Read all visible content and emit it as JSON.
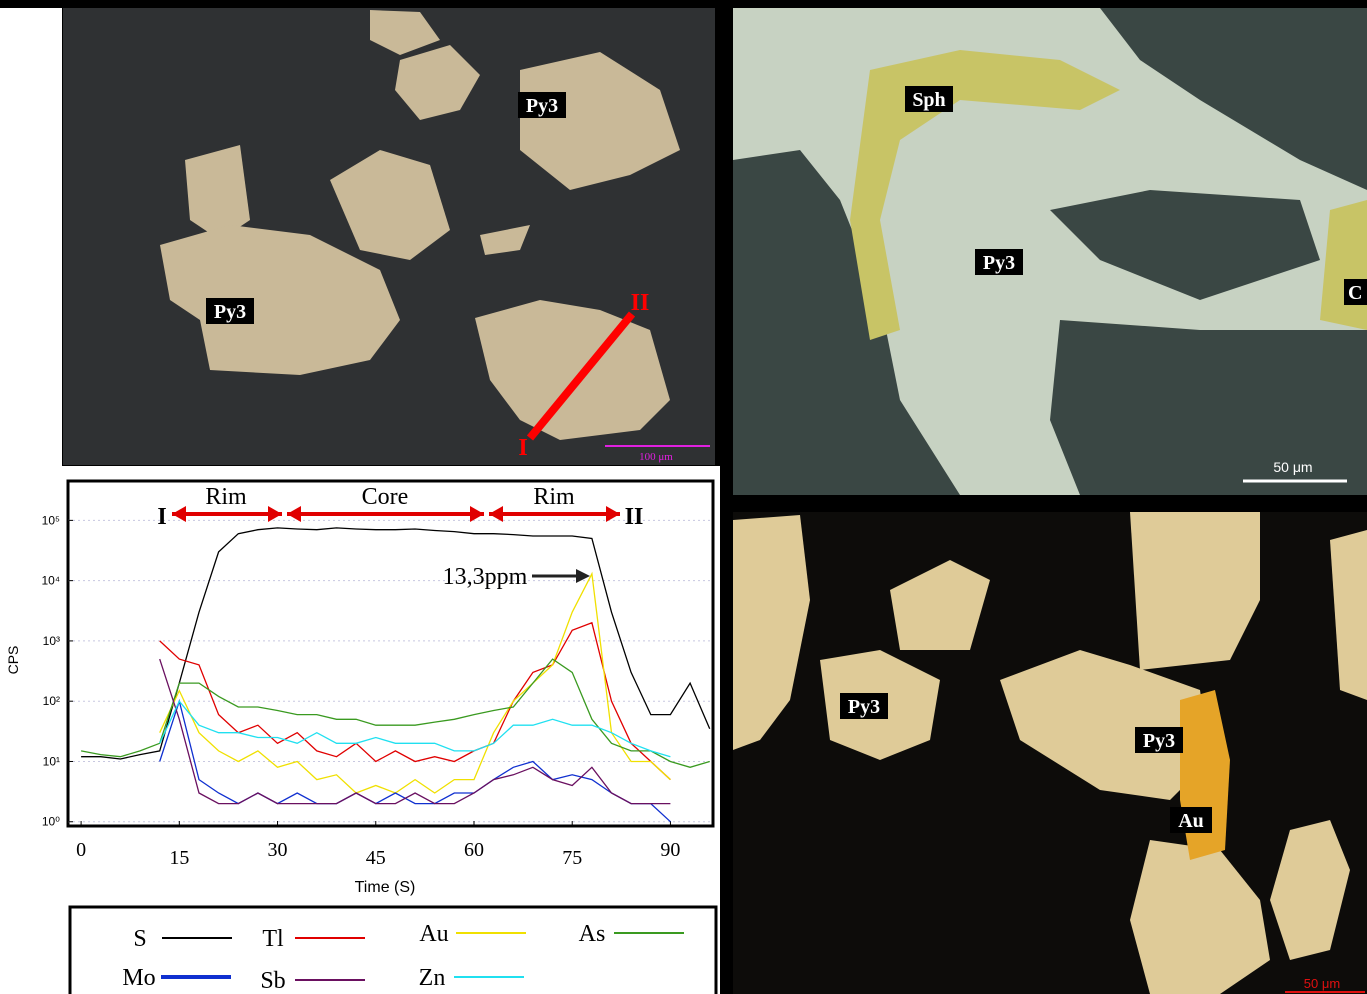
{
  "panels": {
    "top_left": {
      "labels": [
        "Py3",
        "Py3"
      ],
      "profile_start": "I",
      "profile_end": "II",
      "scale_bar": "100 μm"
    },
    "top_right": {
      "labels": [
        "Sph",
        "Py3",
        "C"
      ],
      "scale_bar": "50 μm"
    },
    "bottom_right": {
      "labels": [
        "Py3",
        "Py3",
        "Au"
      ],
      "scale_bar": "50 μm"
    }
  },
  "chart_data": {
    "type": "line",
    "x_label": "Time (S)",
    "y_label": "CPS",
    "log_y": true,
    "grid": true,
    "annotations": [
      "Rim",
      "Core",
      "Rim",
      "I",
      "II",
      "13,3ppm"
    ],
    "xlim": [
      -2,
      96.5
    ],
    "xticks": [
      0,
      15,
      30,
      45,
      60,
      75,
      90
    ],
    "ylim": [
      0.85,
      450000
    ],
    "yticks": [
      {
        "value": 1,
        "label": "10⁰"
      },
      {
        "value": 10,
        "label": "10¹"
      },
      {
        "value": 100,
        "label": "10²"
      },
      {
        "value": 1000,
        "label": "10³"
      },
      {
        "value": 10000,
        "label": "10⁴"
      },
      {
        "value": 100000,
        "label": "10⁵"
      }
    ],
    "x": [
      0,
      3,
      6,
      9,
      12,
      15,
      18,
      21,
      24,
      27,
      30,
      33,
      36,
      39,
      42,
      45,
      48,
      51,
      54,
      57,
      60,
      63,
      66,
      69,
      72,
      75,
      78,
      81,
      84,
      87,
      90,
      93,
      96
    ],
    "series": [
      {
        "name": "S",
        "color": "#000000",
        "values": [
          12,
          12,
          11,
          13,
          15,
          200,
          3000,
          30000,
          60000,
          70000,
          75000,
          72000,
          70000,
          75000,
          72000,
          70000,
          70000,
          72000,
          68000,
          65000,
          60000,
          60000,
          58000,
          55000,
          55000,
          55000,
          50000,
          3000,
          300,
          60,
          60,
          200,
          35
        ]
      },
      {
        "name": "Tl",
        "color": "#e00000",
        "values": [
          null,
          null,
          null,
          null,
          1000,
          500,
          400,
          60,
          30,
          40,
          20,
          30,
          15,
          12,
          20,
          10,
          15,
          10,
          12,
          10,
          15,
          20,
          100,
          300,
          400,
          1500,
          2000,
          100,
          20,
          10,
          5,
          null,
          null
        ]
      },
      {
        "name": "Au",
        "color": "#f0e000",
        "values": [
          null,
          null,
          null,
          null,
          30,
          150,
          30,
          15,
          10,
          15,
          8,
          10,
          5,
          6,
          3,
          4,
          3,
          5,
          3,
          5,
          5,
          30,
          100,
          200,
          400,
          3000,
          13000,
          30,
          10,
          10,
          5,
          null,
          null
        ]
      },
      {
        "name": "As",
        "color": "#3a9a20",
        "values": [
          15,
          13,
          12,
          15,
          20,
          200,
          200,
          120,
          80,
          80,
          70,
          60,
          60,
          50,
          50,
          40,
          40,
          40,
          45,
          50,
          60,
          70,
          80,
          200,
          500,
          300,
          50,
          20,
          15,
          15,
          10,
          8,
          10
        ]
      },
      {
        "name": "Mo",
        "color": "#1030d0",
        "values": [
          null,
          null,
          null,
          null,
          10,
          100,
          5,
          3,
          2,
          3,
          2,
          3,
          2,
          2,
          3,
          2,
          3,
          2,
          2,
          3,
          3,
          5,
          8,
          10,
          5,
          6,
          5,
          3,
          2,
          2,
          1,
          null,
          null
        ]
      },
      {
        "name": "Sb",
        "color": "#6a1060",
        "values": [
          null,
          null,
          null,
          null,
          500,
          50,
          3,
          2,
          2,
          3,
          2,
          2,
          2,
          2,
          3,
          2,
          2,
          3,
          2,
          2,
          3,
          5,
          6,
          8,
          5,
          4,
          8,
          3,
          2,
          2,
          2,
          null,
          null
        ]
      },
      {
        "name": "Zn",
        "color": "#20e0f0",
        "values": [
          null,
          null,
          null,
          null,
          20,
          100,
          40,
          30,
          30,
          25,
          25,
          20,
          30,
          20,
          20,
          25,
          20,
          20,
          20,
          15,
          15,
          20,
          40,
          40,
          50,
          40,
          40,
          30,
          20,
          15,
          12,
          null,
          null
        ]
      }
    ]
  }
}
